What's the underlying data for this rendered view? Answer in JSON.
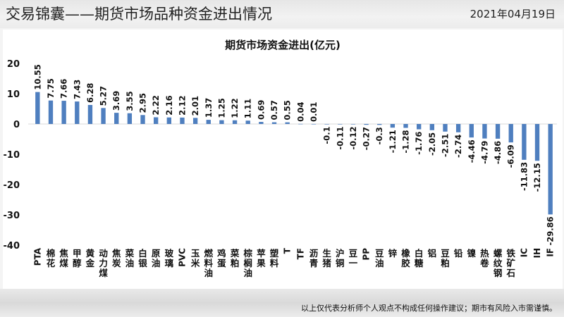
{
  "header": {
    "title": "交易锦囊——期货市场品种资金进出情况",
    "date": "2021年04月19日"
  },
  "footer": {
    "note": "以上仅代表分析师个人观点不构成任何操作建议；期市有风险入市需谨慎。"
  },
  "colors": {
    "bar": "#4f7fbf",
    "text": "#111111"
  },
  "chart_data": {
    "type": "bar",
    "title": "期货市场资金进出(亿元)",
    "xlabel": "",
    "ylabel": "",
    "ylim": [
      -40,
      20
    ],
    "yticks": [
      20,
      10,
      0,
      -10,
      -20,
      -30,
      -40
    ],
    "grid": false,
    "legend": "none",
    "categories": [
      "PTA",
      "棉花",
      "焦煤",
      "甲醇",
      "黄金",
      "动力煤",
      "焦炭",
      "菜油",
      "白银",
      "原油",
      "玻璃",
      "PVC",
      "玉米",
      "燃料油",
      "鸡蛋",
      "菜粕",
      "棕榈油",
      "苹果",
      "塑料",
      "T",
      "TF",
      "沥青",
      "生猪",
      "沪铜",
      "豆一",
      "PP",
      "豆油",
      "锌",
      "橡胶",
      "白糖",
      "铝",
      "豆粕",
      "铅",
      "镍",
      "热卷",
      "螺纹钢",
      "铁矿石",
      "IC",
      "IH",
      "IF"
    ],
    "values": [
      10.55,
      7.75,
      7.66,
      7.43,
      6.28,
      5.27,
      3.69,
      3.55,
      2.95,
      2.22,
      2.16,
      2.12,
      2.01,
      1.37,
      1.25,
      1.22,
      1.11,
      0.69,
      0.57,
      0.55,
      0.04,
      0.01,
      -0.1,
      -0.11,
      -0.12,
      -0.27,
      -0.3,
      -1.21,
      -1.28,
      -1.76,
      -2.05,
      -2.51,
      -2.74,
      -4.46,
      -4.79,
      -4.86,
      -6.09,
      -11.83,
      -12.15,
      -29.86
    ],
    "value_labels": [
      "10.55",
      "7.75",
      "7.66",
      "7.43",
      "6.28",
      "5.27",
      "3.69",
      "3.55",
      "2.95",
      "2.22",
      "2.16",
      "2.12",
      "2.01",
      "1.37",
      "1.25",
      "1.22",
      "1.11",
      "0.69",
      "0.57",
      "0.55",
      "0.04",
      "0.01",
      "-0.1",
      "-0.11",
      "-0.12",
      "-0.27",
      "-0.3",
      "-1.21",
      "-1.28",
      "-1.76",
      "-2.05",
      "-2.51",
      "-2.74",
      "-4.46",
      "-4.79",
      "-4.86",
      "-6.09",
      "-11.83",
      "-12.15",
      "-29.86"
    ]
  }
}
